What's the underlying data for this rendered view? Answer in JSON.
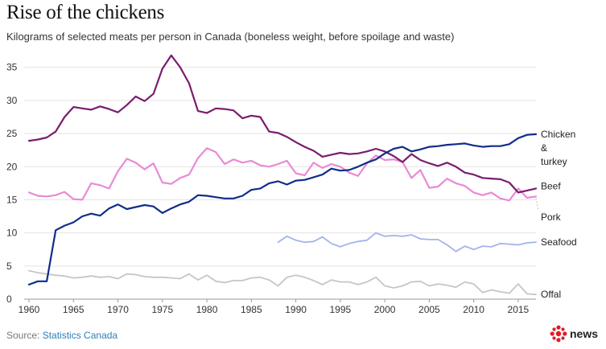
{
  "header": {
    "title": "Rise of the chickens",
    "subtitle": "Kilograms of selected meats per person in Canada (boneless weight, before spoilage and waste)"
  },
  "footer": {
    "source_prefix": "Source: ",
    "source_name": "Statistics Canada",
    "brand": "news"
  },
  "colors": {
    "chicken": "#0f2d8a",
    "beef": "#7a1c6e",
    "pork": "#e98ad6",
    "seafood": "#a3b3ec",
    "offal": "#c6c6c6",
    "grid": "#e3e3e3",
    "brand_red": "#e21b23"
  },
  "chart_data": {
    "type": "line",
    "title": "Rise of the chickens",
    "subtitle": "Kilograms of selected meats per person in Canada (boneless weight, before spoilage and waste)",
    "xlabel": "",
    "ylabel": "",
    "xlim": [
      1960,
      2017
    ],
    "ylim": [
      0,
      38
    ],
    "xticks": [
      1960,
      1965,
      1970,
      1975,
      1980,
      1985,
      1990,
      1995,
      2000,
      2005,
      2010,
      2015
    ],
    "yticks": [
      0,
      5,
      10,
      15,
      20,
      25,
      30,
      35
    ],
    "grid": "horizontal",
    "legend": "direct labels at right end of lines",
    "series": [
      {
        "name": "Chicken & turkey",
        "label_lines": [
          "Chicken",
          "&",
          "turkey"
        ],
        "color": "chicken",
        "x": [
          1960,
          1961,
          1962,
          1963,
          1964,
          1965,
          1966,
          1967,
          1968,
          1969,
          1970,
          1971,
          1972,
          1973,
          1974,
          1975,
          1976,
          1977,
          1978,
          1979,
          1980,
          1981,
          1982,
          1983,
          1984,
          1985,
          1986,
          1987,
          1988,
          1989,
          1990,
          1991,
          1992,
          1993,
          1994,
          1995,
          1996,
          1997,
          1998,
          1999,
          2000,
          2001,
          2002,
          2003,
          2004,
          2005,
          2006,
          2007,
          2008,
          2009,
          2010,
          2011,
          2012,
          2013,
          2014,
          2015,
          2016,
          2017
        ],
        "values": [
          2.2,
          2.7,
          2.7,
          10.4,
          11.1,
          11.6,
          12.5,
          12.9,
          12.6,
          13.7,
          14.3,
          13.6,
          13.9,
          14.2,
          14.0,
          13.0,
          13.7,
          14.3,
          14.7,
          15.7,
          15.6,
          15.4,
          15.2,
          15.2,
          15.6,
          16.5,
          16.7,
          17.5,
          17.8,
          17.3,
          17.9,
          18.0,
          18.4,
          18.8,
          19.7,
          19.4,
          19.5,
          20.0,
          20.6,
          21.1,
          22.0,
          22.7,
          23.0,
          22.3,
          22.6,
          23.0,
          23.1,
          23.3,
          23.4,
          23.5,
          23.2,
          23.0,
          23.1,
          23.1,
          23.4,
          24.3,
          24.8,
          24.9
        ]
      },
      {
        "name": "Beef",
        "color": "beef",
        "x": [
          1960,
          1961,
          1962,
          1963,
          1964,
          1965,
          1966,
          1967,
          1968,
          1969,
          1970,
          1971,
          1972,
          1973,
          1974,
          1975,
          1976,
          1977,
          1978,
          1979,
          1980,
          1981,
          1982,
          1983,
          1984,
          1985,
          1986,
          1987,
          1988,
          1989,
          1990,
          1991,
          1992,
          1993,
          1994,
          1995,
          1996,
          1997,
          1998,
          1999,
          2000,
          2001,
          2002,
          2003,
          2004,
          2005,
          2006,
          2007,
          2008,
          2009,
          2010,
          2011,
          2012,
          2013,
          2014,
          2015,
          2016,
          2017
        ],
        "values": [
          23.9,
          24.1,
          24.4,
          25.3,
          27.5,
          29.0,
          28.8,
          28.6,
          29.1,
          28.7,
          28.2,
          29.3,
          30.6,
          29.9,
          31.0,
          34.8,
          36.8,
          35.0,
          32.6,
          28.4,
          28.1,
          28.8,
          28.7,
          28.5,
          27.3,
          27.7,
          27.5,
          25.3,
          25.1,
          24.5,
          23.7,
          23.0,
          22.4,
          21.5,
          21.8,
          22.1,
          21.9,
          22.0,
          22.3,
          22.7,
          22.3,
          21.6,
          20.7,
          21.9,
          21.0,
          20.5,
          20.1,
          20.6,
          20.0,
          19.1,
          18.8,
          18.3,
          18.2,
          18.1,
          17.6,
          16.1,
          16.4,
          16.7
        ]
      },
      {
        "name": "Pork",
        "color": "pork",
        "x": [
          1960,
          1961,
          1962,
          1963,
          1964,
          1965,
          1966,
          1967,
          1968,
          1969,
          1970,
          1971,
          1972,
          1973,
          1974,
          1975,
          1976,
          1977,
          1978,
          1979,
          1980,
          1981,
          1982,
          1983,
          1984,
          1985,
          1986,
          1987,
          1988,
          1989,
          1990,
          1991,
          1992,
          1993,
          1994,
          1995,
          1996,
          1997,
          1998,
          1999,
          2000,
          2001,
          2002,
          2003,
          2004,
          2005,
          2006,
          2007,
          2008,
          2009,
          2010,
          2011,
          2012,
          2013,
          2014,
          2015,
          2016,
          2017
        ],
        "values": [
          16.1,
          15.6,
          15.5,
          15.7,
          16.2,
          15.1,
          15.0,
          17.5,
          17.2,
          16.7,
          19.3,
          21.2,
          20.6,
          19.6,
          20.5,
          17.6,
          17.4,
          18.3,
          18.8,
          21.3,
          22.8,
          22.2,
          20.4,
          21.1,
          20.6,
          20.9,
          20.2,
          20.0,
          20.4,
          20.9,
          19.0,
          18.7,
          20.6,
          19.8,
          20.4,
          20.0,
          19.1,
          18.6,
          20.5,
          21.7,
          21.0,
          21.1,
          20.7,
          18.3,
          19.5,
          16.8,
          17.0,
          18.2,
          17.5,
          17.1,
          16.1,
          15.7,
          16.1,
          15.2,
          14.9,
          16.7,
          15.3,
          15.5
        ]
      },
      {
        "name": "Seafood",
        "color": "seafood",
        "x": [
          1988,
          1989,
          1990,
          1991,
          1992,
          1993,
          1994,
          1995,
          1996,
          1997,
          1998,
          1999,
          2000,
          2001,
          2002,
          2003,
          2004,
          2005,
          2006,
          2007,
          2008,
          2009,
          2010,
          2011,
          2012,
          2013,
          2014,
          2015,
          2016,
          2017
        ],
        "values": [
          8.6,
          9.5,
          8.9,
          8.6,
          8.7,
          9.4,
          8.4,
          7.9,
          8.4,
          8.7,
          8.9,
          10.0,
          9.5,
          9.6,
          9.5,
          9.7,
          9.1,
          9.0,
          9.0,
          8.2,
          7.2,
          8.0,
          7.5,
          8.0,
          7.9,
          8.4,
          8.3,
          8.2,
          8.5,
          8.6
        ]
      },
      {
        "name": "Offal",
        "color": "offal",
        "x": [
          1960,
          1961,
          1962,
          1963,
          1964,
          1965,
          1966,
          1967,
          1968,
          1969,
          1970,
          1971,
          1972,
          1973,
          1974,
          1975,
          1976,
          1977,
          1978,
          1979,
          1980,
          1981,
          1982,
          1983,
          1984,
          1985,
          1986,
          1987,
          1988,
          1989,
          1990,
          1991,
          1992,
          1993,
          1994,
          1995,
          1996,
          1997,
          1998,
          1999,
          2000,
          2001,
          2002,
          2003,
          2004,
          2005,
          2006,
          2007,
          2008,
          2009,
          2010,
          2011,
          2012,
          2013,
          2014,
          2015,
          2016,
          2017
        ],
        "values": [
          4.3,
          4.0,
          3.8,
          3.6,
          3.5,
          3.2,
          3.3,
          3.5,
          3.3,
          3.4,
          3.1,
          3.8,
          3.7,
          3.4,
          3.3,
          3.3,
          3.2,
          3.1,
          3.8,
          2.9,
          3.6,
          2.7,
          2.5,
          2.8,
          2.8,
          3.2,
          3.3,
          2.9,
          2.0,
          3.3,
          3.6,
          3.3,
          2.8,
          2.2,
          2.9,
          2.6,
          2.6,
          2.2,
          2.6,
          3.3,
          2.0,
          1.7,
          2.0,
          2.6,
          2.7,
          2.0,
          2.3,
          2.1,
          1.8,
          2.6,
          2.3,
          1.0,
          1.4,
          1.1,
          0.9,
          2.3,
          0.8,
          0.7
        ]
      }
    ]
  }
}
